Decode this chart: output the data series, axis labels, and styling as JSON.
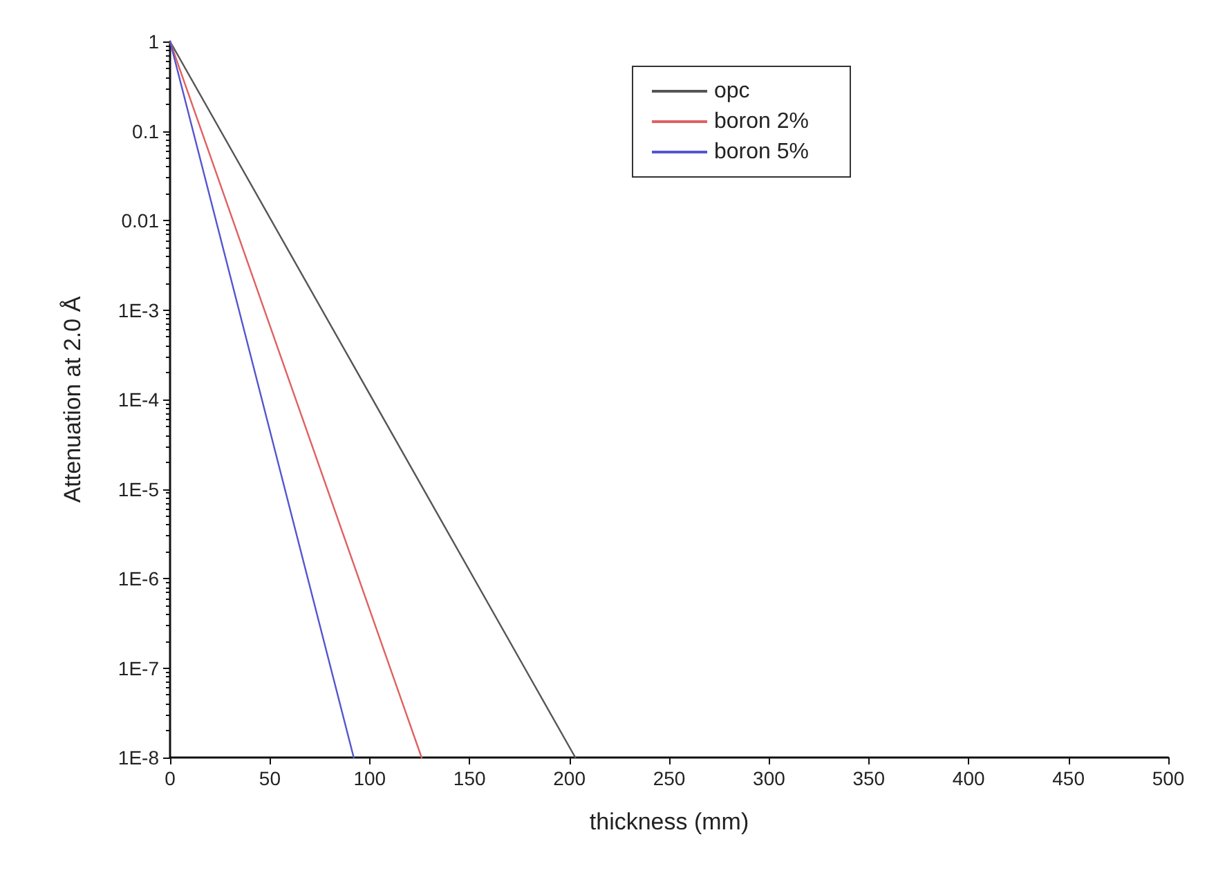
{
  "chart_data": {
    "type": "line",
    "xlabel": "thickness (mm)",
    "ylabel": "Attenuation at 2.0 Å",
    "log": "y",
    "grid": false,
    "legend": "top right",
    "marker": "none",
    "line_style": "solid",
    "xlim": [
      0,
      500
    ],
    "xticks": [
      0,
      50,
      100,
      150,
      200,
      250,
      300,
      350,
      400,
      450,
      500
    ],
    "ylim": [
      1e-08,
      1
    ],
    "yticks": [
      1,
      0.1,
      0.01,
      {
        "value": 0.001,
        "label": "1E-3"
      },
      {
        "value": 0.0001,
        "label": "1E-4"
      },
      {
        "value": 1e-05,
        "label": "1E-5"
      },
      {
        "value": 1e-06,
        "label": "1E-6"
      },
      {
        "value": 1e-07,
        "label": "1E-7"
      },
      {
        "value": 1e-08,
        "label": "1E-8"
      }
    ],
    "series": [
      {
        "name": "opc",
        "color": "#555555",
        "x": [
          0,
          203
        ],
        "values": [
          1,
          1e-08
        ]
      },
      {
        "name": "boron 2%",
        "color": "#e06060",
        "x": [
          0,
          126
        ],
        "values": [
          1,
          1e-08
        ]
      },
      {
        "name": "boron 5%",
        "color": "#5555d0",
        "x": [
          0,
          92
        ],
        "values": [
          1,
          1e-08
        ]
      }
    ]
  }
}
